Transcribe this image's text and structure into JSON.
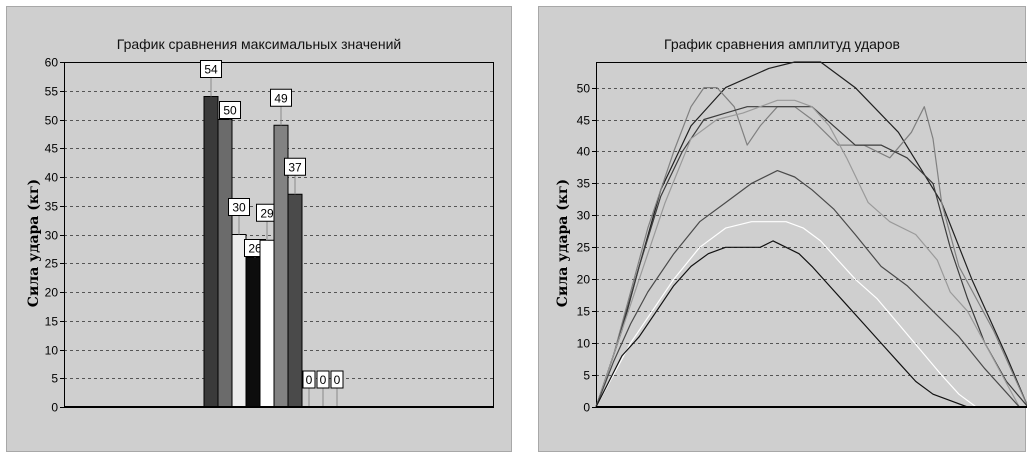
{
  "chart_data": [
    {
      "type": "bar",
      "title": "График сравнения максимальных значений",
      "ylabel": "Сила удара (кг)",
      "xlabel": "",
      "ylim": [
        0,
        60
      ],
      "yticks": [
        0,
        5,
        10,
        15,
        20,
        25,
        30,
        35,
        40,
        45,
        50,
        55,
        60
      ],
      "grid": true,
      "legend": "none",
      "values": [
        54,
        50,
        30,
        26,
        29,
        49,
        37,
        0,
        0,
        0
      ],
      "data_labels": [
        "54",
        "50",
        "30",
        "26",
        "29",
        "49",
        "37",
        "0",
        "0",
        "0"
      ],
      "colors": [
        "#3a3a3a",
        "#6b6b6b",
        "#ededed",
        "#0d0d0d",
        "#ffffff",
        "#828282",
        "#4a4a4a",
        "#ededed",
        "#ededed",
        "#ededed"
      ]
    },
    {
      "type": "line",
      "title": "График сравнения амплитуд ударов",
      "ylabel": "Сила удара (кг)",
      "xlabel": "",
      "ylim": [
        0,
        54
      ],
      "yticks": [
        0,
        5,
        10,
        15,
        20,
        25,
        30,
        35,
        40,
        45,
        50
      ],
      "grid": true,
      "legend": "none",
      "series": [
        {
          "color": "#202020",
          "x": [
            0,
            3,
            6,
            10,
            15,
            22,
            30,
            40,
            46,
            52,
            60,
            70,
            80,
            87,
            95,
            100
          ],
          "y": [
            0,
            6,
            12,
            22,
            34,
            44,
            50,
            53,
            54,
            54,
            50,
            43,
            32,
            20,
            8,
            0
          ]
        },
        {
          "color": "#808080",
          "x": [
            0,
            4,
            8,
            12,
            18,
            22,
            25,
            28,
            32,
            35,
            38,
            42,
            46,
            50,
            56,
            62,
            68,
            73,
            76,
            78,
            80,
            84,
            88,
            92,
            96,
            100
          ],
          "y": [
            0,
            8,
            18,
            28,
            40,
            47,
            50,
            50,
            47,
            41,
            44,
            47,
            47,
            45,
            41,
            41,
            39,
            43,
            47,
            42,
            32,
            22,
            17,
            12,
            6,
            0
          ]
        },
        {
          "color": "#3c3c3c",
          "x": [
            0,
            5,
            10,
            15,
            20,
            25,
            30,
            35,
            40,
            45,
            50,
            55,
            60,
            66,
            72,
            78,
            82,
            86,
            90,
            95,
            100
          ],
          "y": [
            0,
            10,
            22,
            33,
            40,
            45,
            46,
            47,
            47,
            47,
            47,
            44,
            41,
            41,
            39,
            35,
            25,
            17,
            10,
            4,
            0
          ]
        },
        {
          "color": "#9a9a9a",
          "x": [
            0,
            5,
            10,
            16,
            22,
            28,
            34,
            38,
            42,
            46,
            50,
            54,
            58,
            63,
            68,
            74,
            79,
            82,
            86,
            90,
            94,
            98
          ],
          "y": [
            0,
            10,
            20,
            32,
            42,
            45,
            46,
            47,
            48,
            48,
            47,
            44,
            39,
            32,
            29,
            27,
            23,
            18,
            15,
            10,
            5,
            0
          ]
        },
        {
          "color": "#4a4a4a",
          "x": [
            0,
            4,
            8,
            12,
            18,
            24,
            30,
            36,
            42,
            46,
            50,
            55,
            60,
            66,
            72,
            78,
            84,
            90,
            94,
            98
          ],
          "y": [
            0,
            7,
            13,
            18,
            24,
            29,
            32,
            35,
            37,
            36,
            34,
            31,
            27,
            22,
            19,
            15,
            11,
            6,
            3,
            0
          ]
        },
        {
          "color": "#ffffff",
          "x": [
            0,
            4,
            8,
            12,
            18,
            24,
            30,
            36,
            40,
            44,
            48,
            52,
            56,
            60,
            65,
            70,
            75,
            80,
            84,
            88
          ],
          "y": [
            0,
            5,
            10,
            14,
            20,
            25,
            28,
            29,
            29,
            29,
            28,
            26,
            23,
            20,
            17,
            13,
            9,
            5,
            2,
            0
          ]
        },
        {
          "color": "#111111",
          "x": [
            0,
            3,
            6,
            10,
            14,
            18,
            22,
            26,
            30,
            34,
            38,
            41,
            44,
            47,
            50,
            54,
            58,
            62,
            66,
            70,
            74,
            78,
            82,
            86
          ],
          "y": [
            0,
            4,
            8,
            11,
            15,
            19,
            22,
            24,
            25,
            25,
            25,
            26,
            25,
            24,
            22,
            19,
            16,
            13,
            10,
            7,
            4,
            2,
            1,
            0
          ]
        }
      ]
    }
  ]
}
